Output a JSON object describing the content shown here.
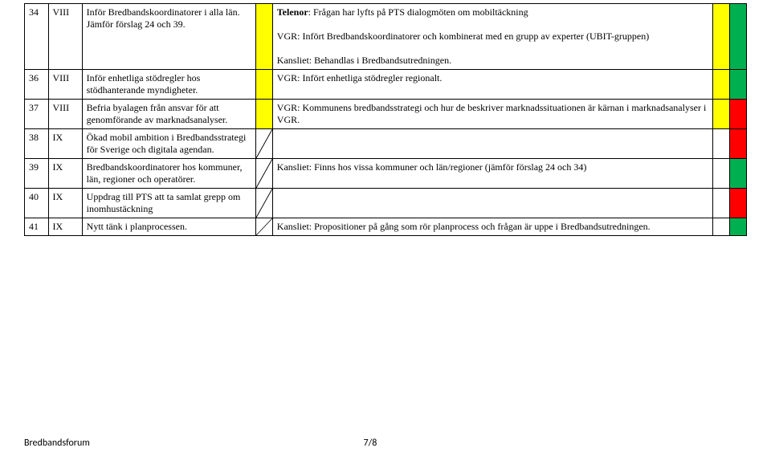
{
  "rows": [
    {
      "num": "34",
      "chap": "VIII",
      "desc": "Inför Bredbandskoordinatorer i alla län. Jämför förslag 24 och 39.",
      "diag": false,
      "comment_html": "<b>Telenor</b>: Frågan har lyfts på PTS dialogmöten om mobiltäckning<br><br>VGR: Infört Bredbandskoordinatorer och kombinerat med en grupp av experter (UBIT-gruppen)<br><br>Kansliet: Behandlas i Bredbandsutredningen.",
      "s1": "yellow",
      "s2": "green"
    },
    {
      "num": "36",
      "chap": "VIII",
      "desc": "Inför enhetliga stödregler hos stödhanterande myndigheter.",
      "diag": false,
      "comment_html": "VGR: Infört enhetliga stödregler regionalt.",
      "s1": "yellow",
      "s2": "green"
    },
    {
      "num": "37",
      "chap": "VIII",
      "desc": "Befria byalagen från ansvar för att genomförande av marknadsanalyser.",
      "diag": false,
      "comment_html": "VGR: Kommunens bredbandsstrategi och hur de beskriver marknadssituationen är kärnan i marknadsanalyser i VGR.",
      "s1": "yellow",
      "s2": "red"
    },
    {
      "num": "38",
      "chap": "IX",
      "desc": "Ökad mobil ambition i Bredbandsstrategi för Sverige och digitala agendan.",
      "diag": true,
      "comment_html": "",
      "s1": "",
      "s2": "red"
    },
    {
      "num": "39",
      "chap": "IX",
      "desc": "Bredbandskoordinatorer hos kommuner, län, regioner och operatörer.",
      "diag": true,
      "comment_html": "Kansliet: Finns hos vissa kommuner och län/regioner (jämför förslag 24 och 34)",
      "s1": "",
      "s2": "green"
    },
    {
      "num": "40",
      "chap": "IX",
      "desc": "Uppdrag till PTS att ta samlat grepp om inomhustäckning",
      "diag": true,
      "comment_html": "",
      "s1": "",
      "s2": "red"
    },
    {
      "num": "41",
      "chap": "IX",
      "desc": "Nytt tänk i planprocessen.",
      "diag": true,
      "comment_html": "Kansliet: Propositioner på gång som rör planprocess och frågan är uppe i Bredbandsutredningen.",
      "s1": "",
      "s2": "green"
    }
  ],
  "footer": {
    "left": "Bredbandsforum",
    "page": "7/8"
  },
  "colors": {
    "yellow": "#ffff00",
    "red": "#ff0000",
    "green": "#00b050"
  }
}
